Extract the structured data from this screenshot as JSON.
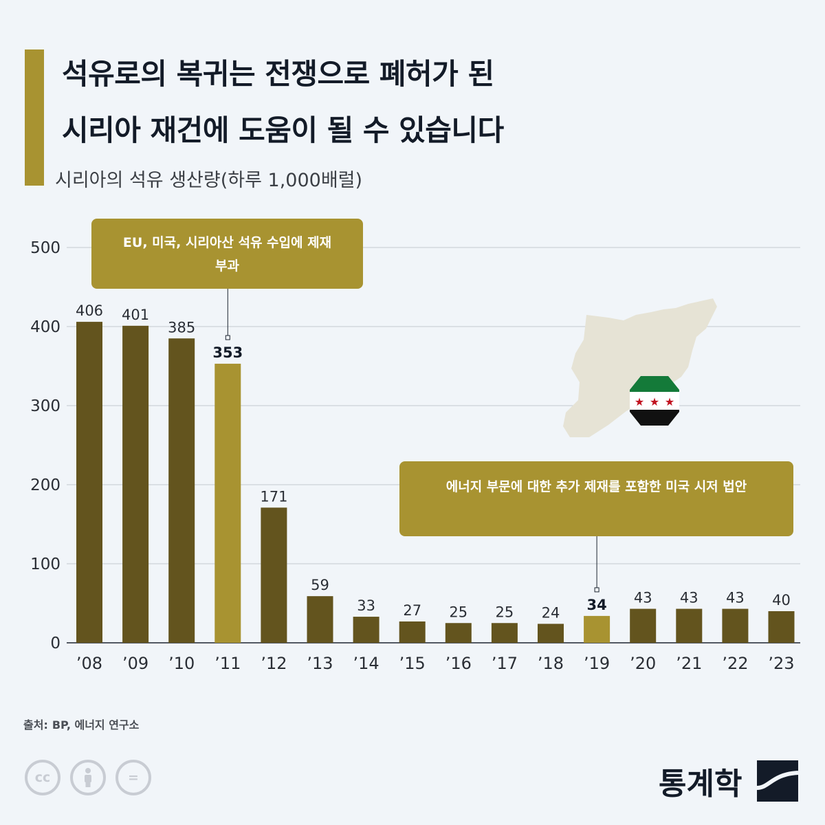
{
  "header": {
    "title_line1": "석유로의 복귀는 전쟁으로 폐허가 된",
    "title_line2": "시리아 재건에 도움이 될 수 있습니다",
    "subtitle": "시리아의 석유 생산량(하루 1,000배럴)"
  },
  "annotations": {
    "sanctions_line1": "EU, 미국, 시리아산 석유 수입에 제재",
    "sanctions_line2": "부과",
    "caesar_act": "에너지 부문에 대한 추가 제재를 포함한 미국 시저 법안"
  },
  "chart_data": {
    "type": "bar",
    "categories": [
      "’08",
      "’09",
      "’10",
      "’11",
      "’12",
      "’13",
      "’14",
      "’15",
      "’16",
      "’17",
      "’18",
      "’19",
      "’20",
      "’21",
      "’22",
      "’23"
    ],
    "values": [
      406,
      401,
      385,
      353,
      171,
      59,
      33,
      27,
      25,
      25,
      24,
      34,
      43,
      43,
      43,
      40
    ],
    "highlighted_categories": [
      "’11",
      "’19"
    ],
    "ylim": [
      0,
      500
    ],
    "yticks": [
      0,
      100,
      200,
      300,
      400,
      500
    ],
    "grid": true,
    "xlabel": "",
    "ylabel": "",
    "colors": {
      "bar": "#63541e",
      "highlight": "#a89331",
      "grid": "#c4c9d0"
    }
  },
  "map": {
    "icon": "syria-map-icon",
    "flag": "syrian-revolution-flag-icon"
  },
  "footer": {
    "source_label": "출처:",
    "source_text": "BP, 에너지 연구소",
    "license_icons": [
      "cc-icon",
      "attribution-icon",
      "no-derivatives-icon"
    ],
    "cc_text": "cc",
    "nd_text": "=",
    "brand": "통계학"
  }
}
